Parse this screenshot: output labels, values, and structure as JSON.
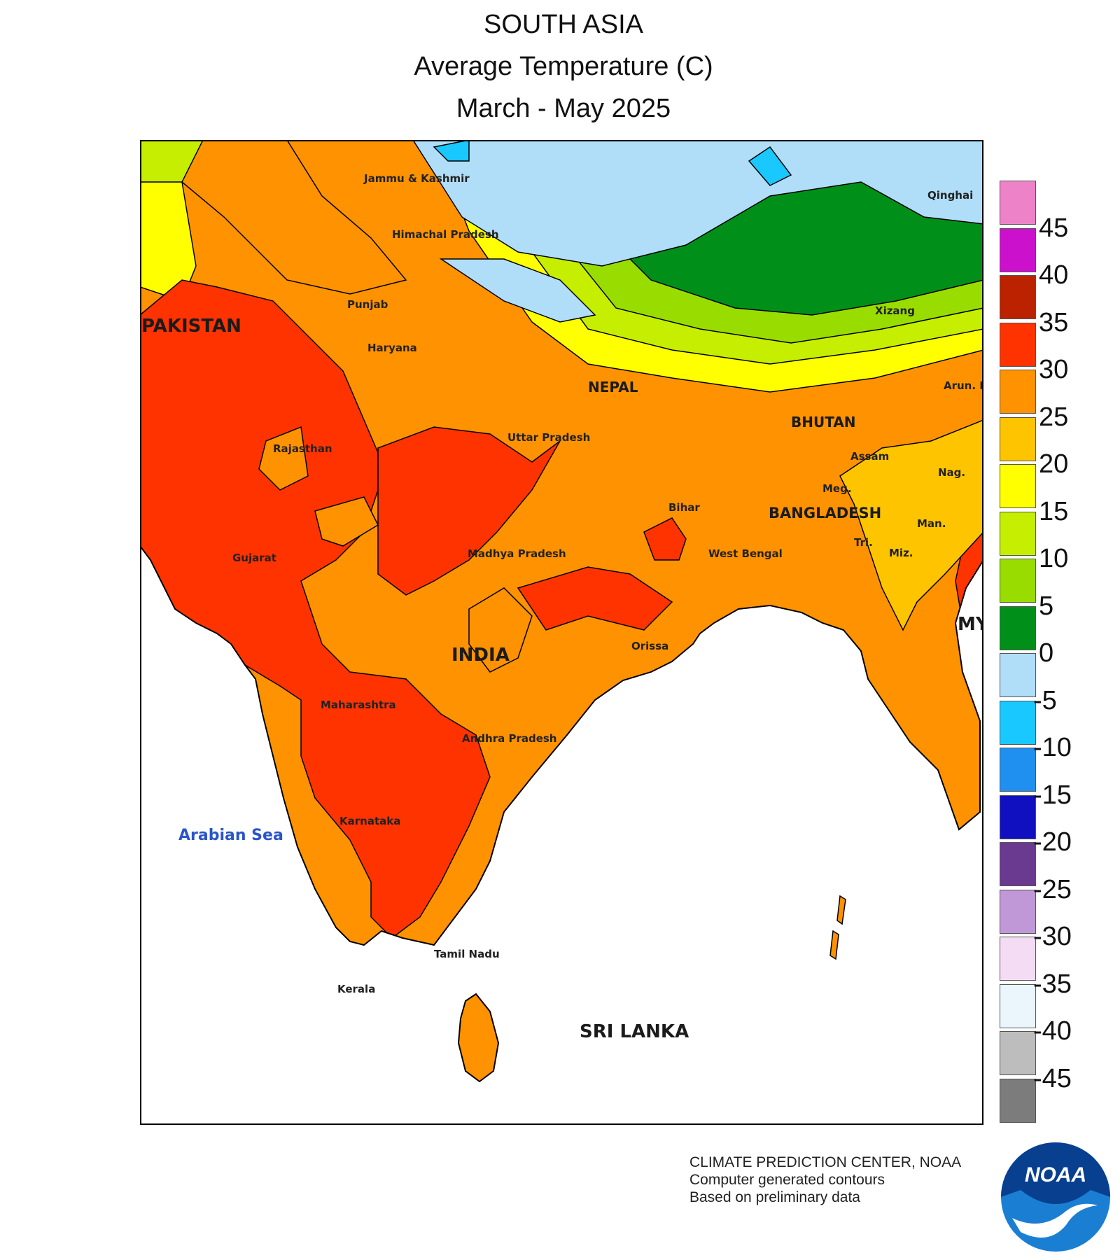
{
  "title": {
    "line1": "SOUTH ASIA",
    "line2": "Average Temperature (C)",
    "line3": "March - May 2025"
  },
  "map": {
    "regions": [
      "Jammu & Kashmir",
      "Himachal Pradesh",
      "Punjab",
      "Haryana",
      "Rajasthan",
      "Gujarat",
      "Uttar Pradesh",
      "Madhya Pradesh",
      "Bihar",
      "West Bengal",
      "Assam",
      "Meg.",
      "Tri.",
      "Miz.",
      "Man.",
      "Nag.",
      "Arun. Pradesh",
      "Orissa",
      "Maharashtra",
      "Andhra Pradesh",
      "Karnataka",
      "Tamil Nadu",
      "Kerala",
      "Qinghai",
      "Xizang"
    ],
    "countries": [
      "PAKISTAN",
      "INDIA",
      "NEPAL",
      "BHUTAN",
      "BANGLADESH",
      "SRI LANKA",
      "MY"
    ],
    "seas": [
      "Arabian Sea"
    ]
  },
  "legend": {
    "unit": "C",
    "ticks": [
      "45",
      "40",
      "35",
      "30",
      "25",
      "20",
      "15",
      "10",
      "5",
      "0",
      "-5",
      "-10",
      "-15",
      "-20",
      "-25",
      "-30",
      "-35",
      "-40",
      "-45"
    ],
    "colors": [
      "#ee82c8",
      "#cc11cc",
      "#bb2200",
      "#ff3300",
      "#ff9200",
      "#ffc400",
      "#ffff00",
      "#c6ee00",
      "#99dd00",
      "#00901a",
      "#b0def8",
      "#18c8ff",
      "#2090f0",
      "#1010c0",
      "#6a3a90",
      "#c098d8",
      "#f4dcf4",
      "#eaf6fc",
      "#bdbdbd",
      "#7c7c7c"
    ],
    "land_colors": {
      "t30_35": "#ff3300",
      "t25_30": "#ff9200",
      "t20_25": "#ffc400",
      "t15_20": "#ffff00",
      "t10_15": "#c6ee00",
      "t5_10": "#99dd00",
      "t0_5": "#00901a",
      "tm5_0": "#b0def8",
      "tm10_m5": "#18c8ff"
    }
  },
  "credits": {
    "line1": "CLIMATE PREDICTION CENTER, NOAA",
    "line2": "Computer generated contours",
    "line3": "Based on preliminary data"
  },
  "logo": {
    "text": "NOAA",
    "name": "noaa-logo-icon"
  }
}
